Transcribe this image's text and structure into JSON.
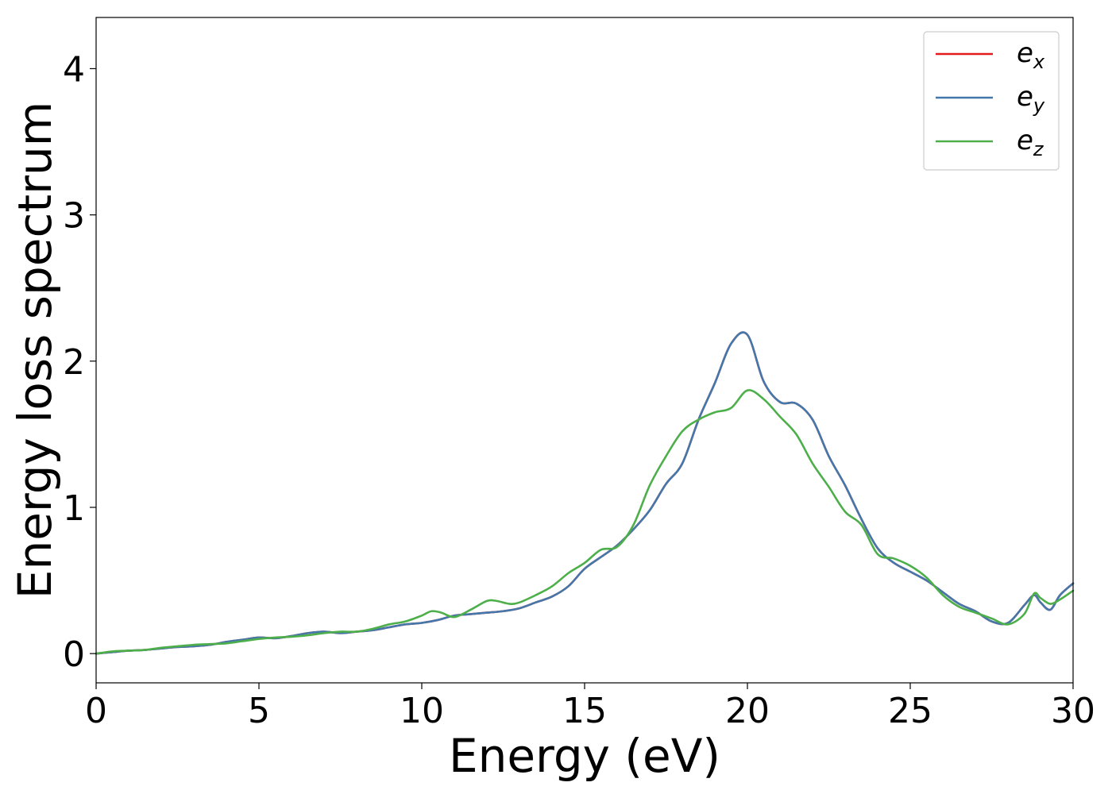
{
  "chart_data": {
    "type": "line",
    "xlabel": "Energy (eV)",
    "ylabel": "Energy loss spectrum",
    "xlim": [
      0,
      30
    ],
    "ylim": [
      -0.2,
      4.35
    ],
    "xticks": [
      0,
      5,
      10,
      15,
      20,
      25,
      30
    ],
    "xtick_labels": [
      "0",
      "5",
      "10",
      "15",
      "20",
      "25",
      "30"
    ],
    "yticks": [
      0,
      1,
      2,
      3,
      4
    ],
    "ytick_labels": [
      "0",
      "1",
      "2",
      "3",
      "4"
    ],
    "grid": false,
    "legend_position": "top-right",
    "series": [
      {
        "name": "e",
        "sub": "x",
        "color": "#e41a1c",
        "x": [
          0,
          0.5,
          1,
          1.5,
          2,
          2.5,
          3,
          3.5,
          4,
          4.5,
          5,
          5.5,
          6,
          6.5,
          7,
          7.5,
          8,
          8.5,
          9,
          9.5,
          10,
          10.5,
          11,
          11.5,
          12,
          12.5,
          13,
          13.5,
          14,
          14.5,
          15,
          15.5,
          16,
          16.5,
          17,
          17.5,
          18,
          18.5,
          19,
          19.5,
          20,
          20.5,
          21,
          21.5,
          22,
          22.5,
          23,
          23.5,
          24,
          24.5,
          25,
          25.5,
          26,
          26.5,
          27,
          27.5,
          28,
          28.5,
          28.8,
          29,
          29.3,
          29.6,
          30
        ],
        "y": [
          0.0,
          0.01,
          0.02,
          0.025,
          0.035,
          0.045,
          0.05,
          0.06,
          0.08,
          0.095,
          0.11,
          0.105,
          0.12,
          0.14,
          0.15,
          0.14,
          0.15,
          0.16,
          0.18,
          0.2,
          0.21,
          0.23,
          0.26,
          0.27,
          0.28,
          0.29,
          0.31,
          0.35,
          0.39,
          0.46,
          0.58,
          0.66,
          0.74,
          0.85,
          0.98,
          1.16,
          1.3,
          1.6,
          1.85,
          2.12,
          2.18,
          1.86,
          1.72,
          1.71,
          1.6,
          1.35,
          1.15,
          0.92,
          0.72,
          0.62,
          0.56,
          0.5,
          0.42,
          0.34,
          0.29,
          0.22,
          0.21,
          0.33,
          0.4,
          0.35,
          0.3,
          0.4,
          0.48
        ]
      },
      {
        "name": "e",
        "sub": "y",
        "color": "#4477aa",
        "x": [
          0,
          0.5,
          1,
          1.5,
          2,
          2.5,
          3,
          3.5,
          4,
          4.5,
          5,
          5.5,
          6,
          6.5,
          7,
          7.5,
          8,
          8.5,
          9,
          9.5,
          10,
          10.5,
          11,
          11.5,
          12,
          12.5,
          13,
          13.5,
          14,
          14.5,
          15,
          15.5,
          16,
          16.5,
          17,
          17.5,
          18,
          18.5,
          19,
          19.5,
          20,
          20.5,
          21,
          21.5,
          22,
          22.5,
          23,
          23.5,
          24,
          24.5,
          25,
          25.5,
          26,
          26.5,
          27,
          27.5,
          28,
          28.5,
          28.8,
          29,
          29.3,
          29.6,
          30
        ],
        "y": [
          0.0,
          0.01,
          0.02,
          0.025,
          0.035,
          0.045,
          0.05,
          0.06,
          0.08,
          0.095,
          0.11,
          0.105,
          0.12,
          0.14,
          0.15,
          0.14,
          0.15,
          0.16,
          0.18,
          0.2,
          0.21,
          0.23,
          0.26,
          0.27,
          0.28,
          0.29,
          0.31,
          0.35,
          0.39,
          0.46,
          0.58,
          0.66,
          0.74,
          0.85,
          0.98,
          1.16,
          1.3,
          1.6,
          1.85,
          2.12,
          2.18,
          1.86,
          1.72,
          1.71,
          1.6,
          1.35,
          1.15,
          0.92,
          0.72,
          0.62,
          0.56,
          0.5,
          0.42,
          0.34,
          0.29,
          0.22,
          0.21,
          0.33,
          0.4,
          0.35,
          0.3,
          0.4,
          0.48
        ]
      },
      {
        "name": "e",
        "sub": "z",
        "color": "#4daf4a",
        "x": [
          0,
          0.5,
          1,
          1.5,
          2,
          2.5,
          3,
          3.5,
          4,
          4.5,
          5,
          5.5,
          6,
          6.5,
          7,
          7.5,
          8,
          8.5,
          9,
          9.5,
          10,
          10.3,
          10.6,
          11,
          11.5,
          12,
          12.3,
          12.7,
          13,
          13.5,
          14,
          14.5,
          15,
          15.5,
          16,
          16.5,
          17,
          17.5,
          18,
          18.5,
          19,
          19.5,
          20,
          20.5,
          21,
          21.5,
          22,
          22.5,
          23,
          23.5,
          24,
          24.5,
          25,
          25.5,
          26,
          26.5,
          27,
          27.5,
          28,
          28.5,
          28.8,
          29,
          29.3,
          29.6,
          30
        ],
        "y": [
          0.0,
          0.015,
          0.02,
          0.025,
          0.04,
          0.05,
          0.06,
          0.065,
          0.07,
          0.085,
          0.1,
          0.11,
          0.115,
          0.125,
          0.14,
          0.15,
          0.15,
          0.17,
          0.2,
          0.22,
          0.26,
          0.29,
          0.28,
          0.25,
          0.3,
          0.36,
          0.36,
          0.34,
          0.35,
          0.4,
          0.46,
          0.55,
          0.62,
          0.71,
          0.73,
          0.88,
          1.15,
          1.35,
          1.52,
          1.6,
          1.65,
          1.68,
          1.8,
          1.74,
          1.62,
          1.5,
          1.3,
          1.14,
          0.97,
          0.88,
          0.68,
          0.65,
          0.6,
          0.52,
          0.4,
          0.32,
          0.28,
          0.24,
          0.2,
          0.27,
          0.41,
          0.38,
          0.34,
          0.37,
          0.43
        ]
      }
    ]
  }
}
